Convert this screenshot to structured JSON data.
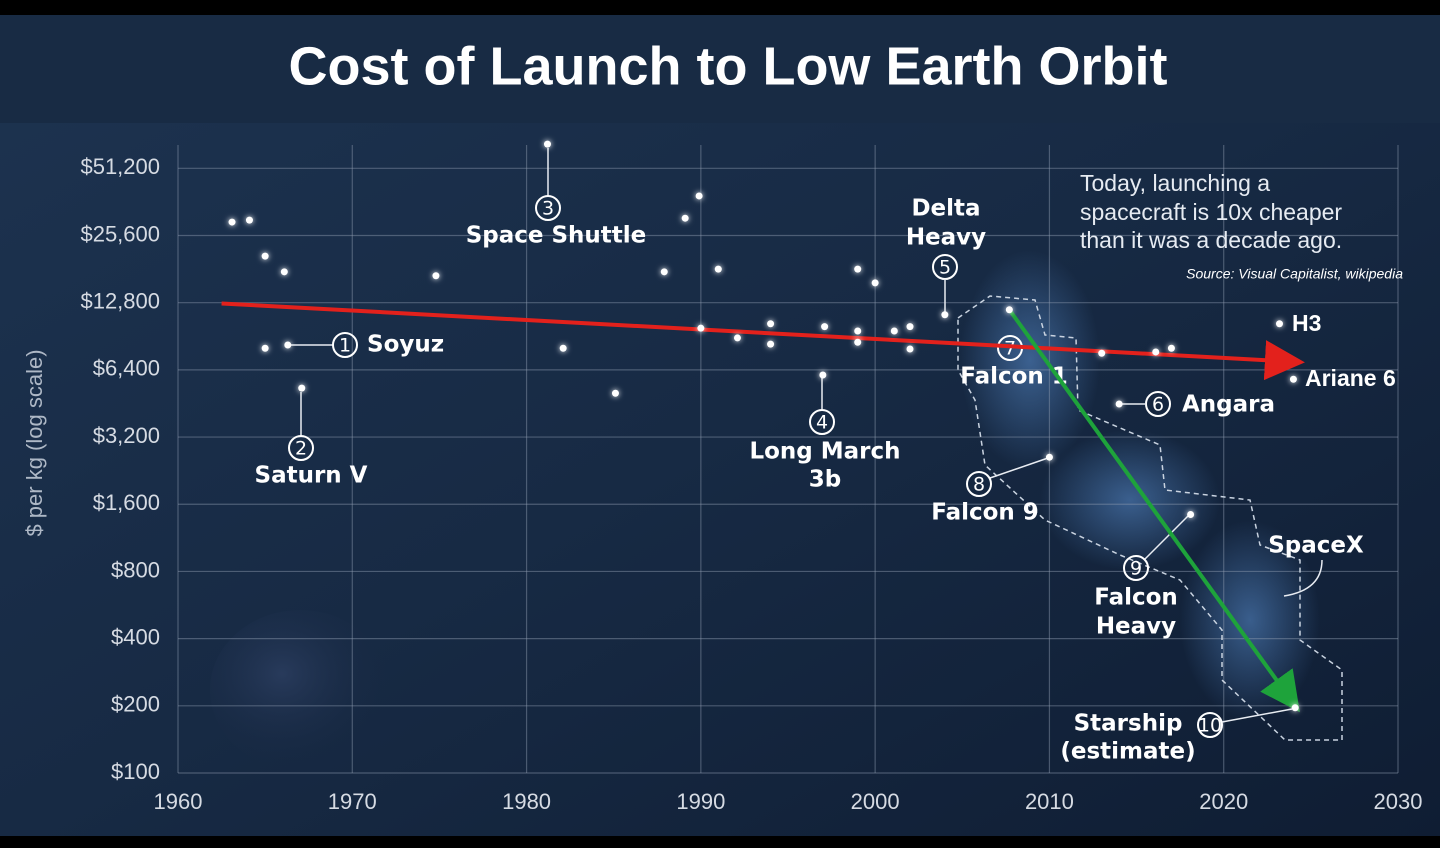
{
  "chart_data": {
    "type": "scatter",
    "title": "Cost of Launch to Low Earth Orbit",
    "y_label": "$ per kg (log scale)",
    "log_y": true,
    "grid": true,
    "color": "#ffffff",
    "xlim": [
      1960,
      2030
    ],
    "xticks": [
      1960,
      1970,
      1980,
      1990,
      2000,
      2010,
      2020,
      2030
    ],
    "ylim": [
      100,
      70000
    ],
    "yticks": [
      {
        "value": 100,
        "label": "$100"
      },
      {
        "value": 200,
        "label": "$200"
      },
      {
        "value": 400,
        "label": "$400"
      },
      {
        "value": 800,
        "label": "$800"
      },
      {
        "value": 1600,
        "label": "$1,600"
      },
      {
        "value": 3200,
        "label": "$3,200"
      },
      {
        "value": 6400,
        "label": "$6,400"
      },
      {
        "value": 12800,
        "label": "$12,800"
      },
      {
        "value": 25600,
        "label": "$25,600"
      },
      {
        "value": 51200,
        "label": "$51,200"
      }
    ],
    "x": [
      1963.1,
      1964.1,
      1965,
      1966.1,
      1965,
      1966.3,
      1967.1,
      1974.8,
      1981.2,
      1982.1,
      1985.1,
      1987.9,
      1989.1,
      1989.9,
      1991,
      1990,
      1992.1,
      1994,
      1994,
      1997,
      1997.1,
      1999,
      2000,
      1999,
      1999,
      2001.1,
      2002,
      2002,
      2004,
      2007.7,
      2013,
      2016.1,
      2017,
      2014,
      2010,
      2018.1,
      2023.2,
      2024,
      2024.1
    ],
    "y": [
      29400,
      30000,
      20700,
      17600,
      8000,
      8270,
      5300,
      16900,
      65700,
      8000,
      5030,
      17600,
      30600,
      38500,
      18100,
      9840,
      8900,
      10300,
      8350,
      6070,
      10000,
      18100,
      15700,
      9560,
      8510,
      9560,
      10000,
      7940,
      11300,
      11900,
      7600,
      7700,
      8000,
      4500,
      2600,
      1440,
      10300,
      5810,
      196
    ],
    "trend_lines": [
      {
        "color": "#e3211c",
        "x": [
          1962.5,
          2024.2
        ],
        "y": [
          12700,
          6950
        ]
      },
      {
        "color": "#1ea33b",
        "x": [
          2007.7,
          2024.1
        ],
        "y": [
          11900,
          200
        ]
      }
    ],
    "annotations": [
      {
        "marker": "1",
        "lines": [
          "Soyuz"
        ]
      },
      {
        "marker": "2",
        "lines": [
          "Saturn V"
        ]
      },
      {
        "marker": "3",
        "lines": [
          "Space Shuttle"
        ]
      },
      {
        "marker": "4",
        "lines": [
          "Long March",
          "3b"
        ]
      },
      {
        "marker": "5",
        "lines": [
          "Delta",
          "Heavy"
        ]
      },
      {
        "marker": "6",
        "lines": [
          "Angara"
        ]
      },
      {
        "marker": "7",
        "lines": [
          "Falcon 1"
        ]
      },
      {
        "marker": "8",
        "lines": [
          "Falcon 9"
        ]
      },
      {
        "marker": "9",
        "lines": [
          "Falcon",
          "Heavy"
        ]
      },
      {
        "marker": "10",
        "lines": [
          "Starship",
          "(estimate)"
        ]
      },
      {
        "lines": [
          "H3"
        ]
      },
      {
        "lines": [
          "Ariane 6"
        ]
      },
      {
        "lines": [
          "SpaceX"
        ]
      }
    ],
    "note": [
      "Today, launching a",
      "spacecraft is 10x cheaper",
      "than it was a decade ago."
    ],
    "source": "Source: Visual Capitalist, wikipedia"
  }
}
